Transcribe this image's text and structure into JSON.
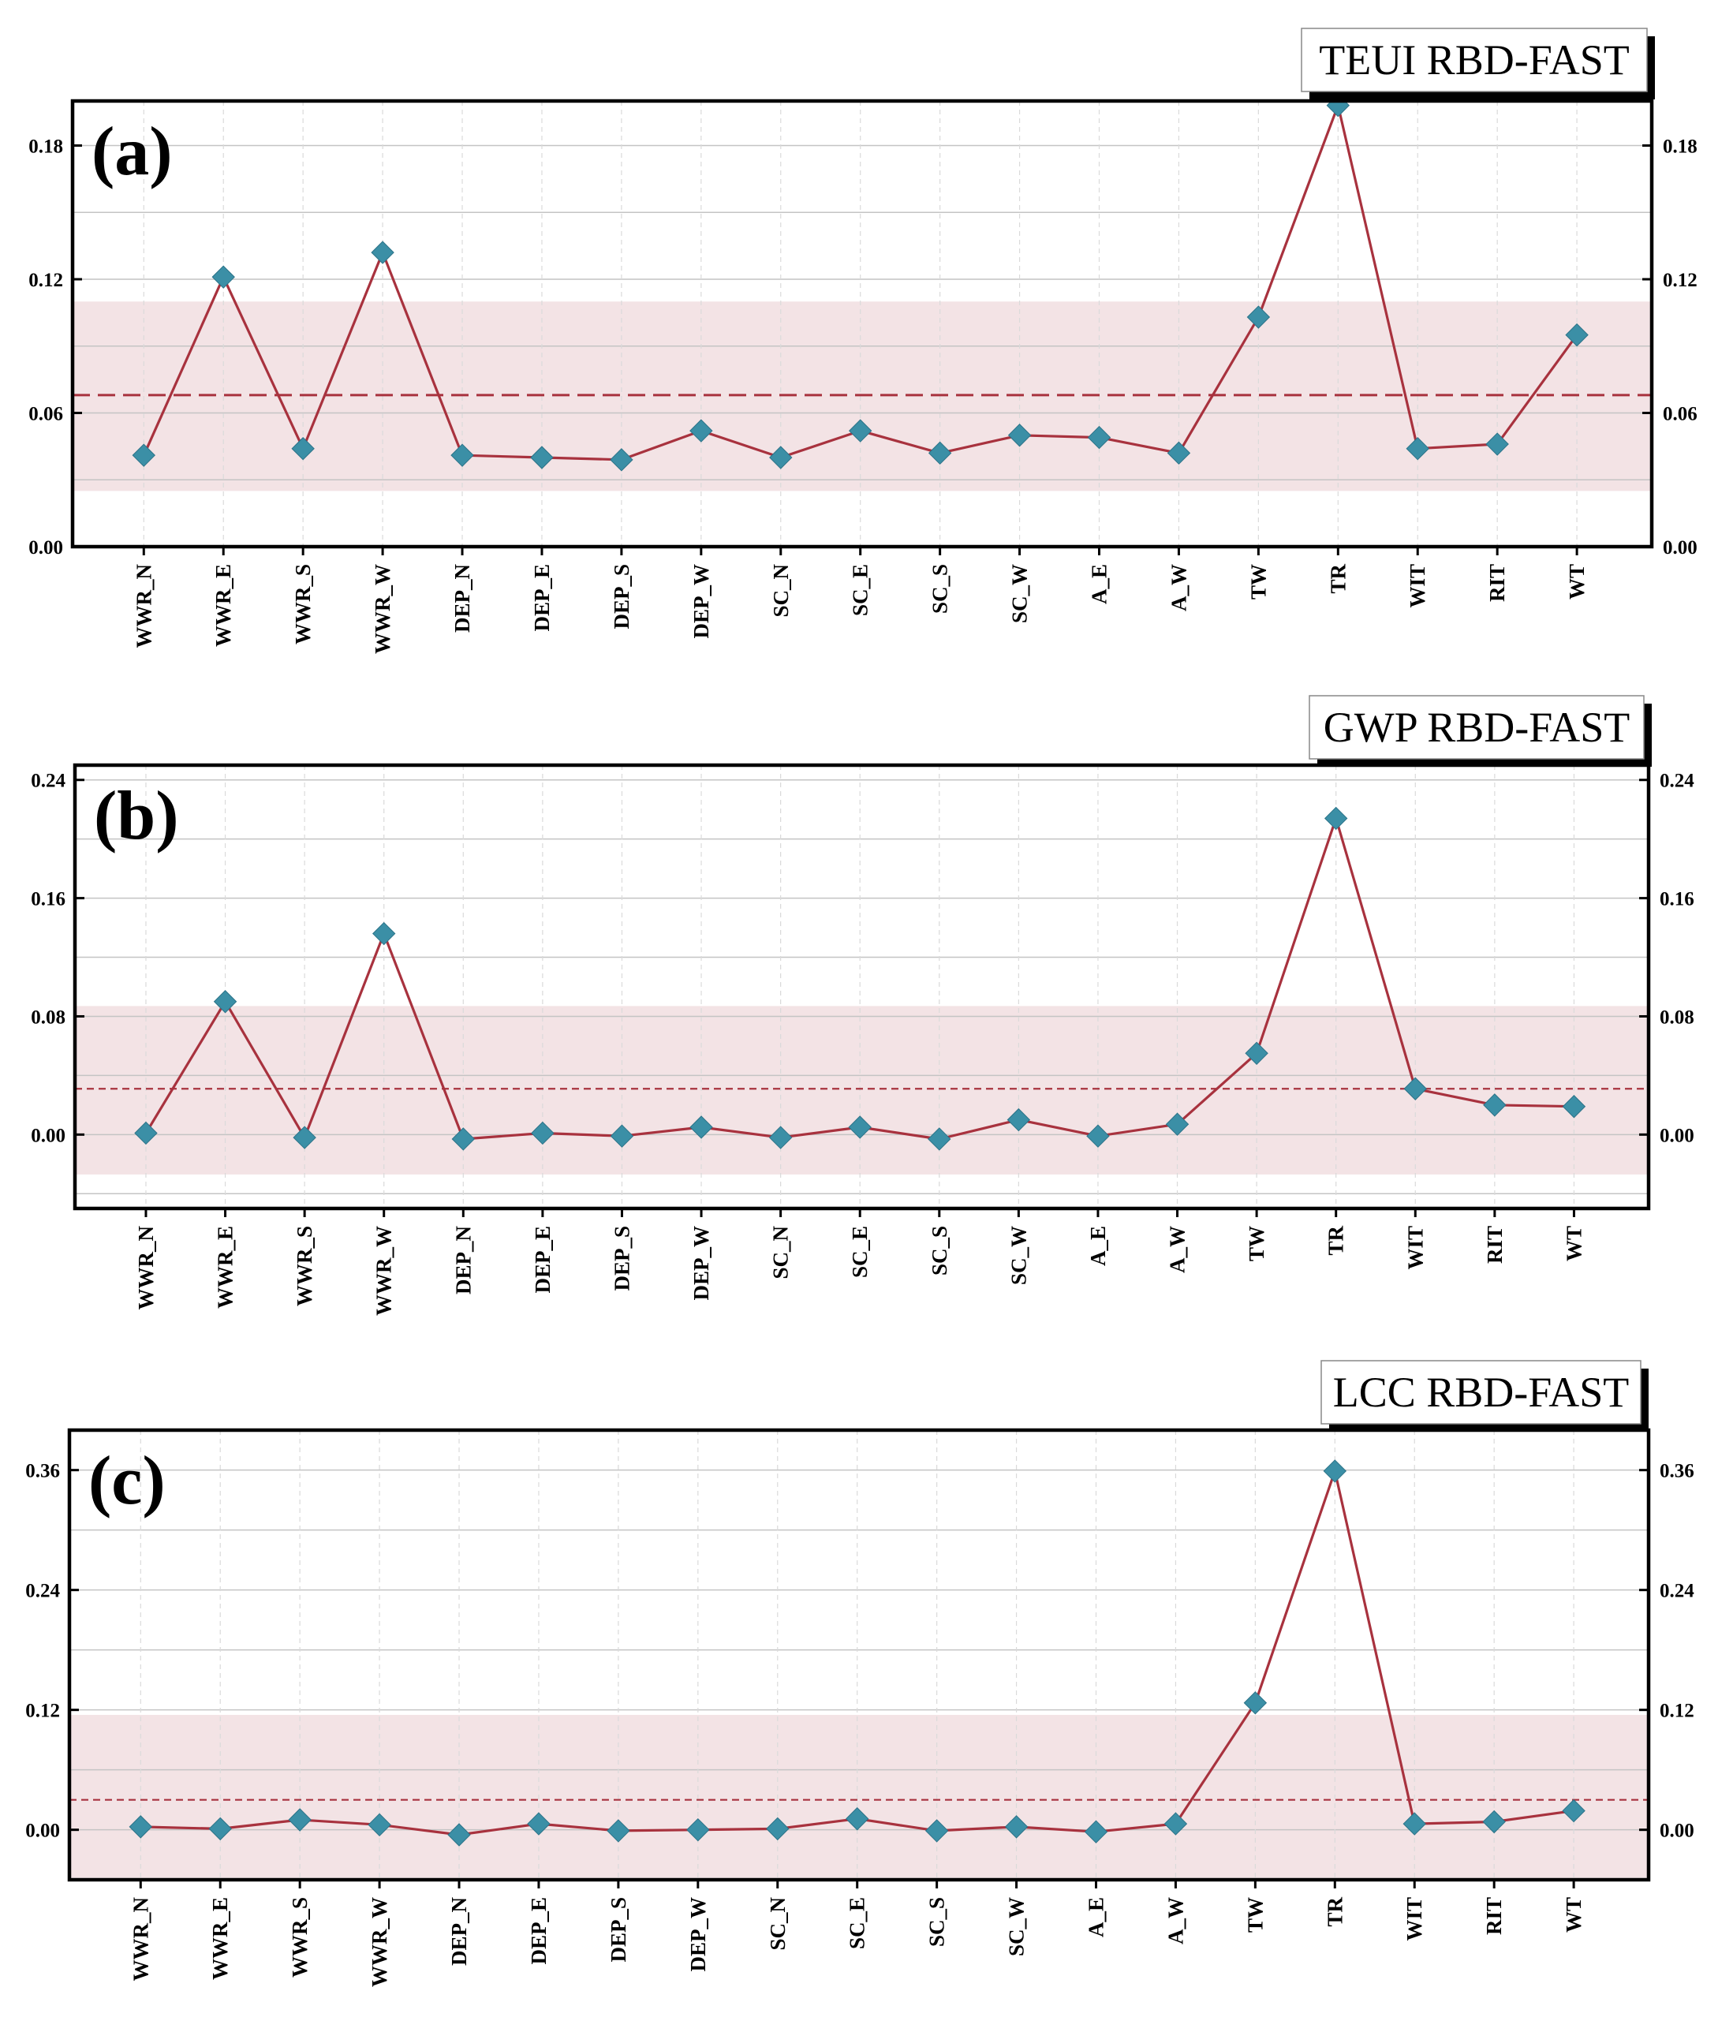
{
  "chart_data": [
    {
      "type": "line",
      "panel_label": "(a)",
      "title": "TEUI RBD-FAST",
      "xlabel": "",
      "ylabel": "",
      "categories": [
        "WWR_N",
        "WWR_E",
        "WWR_S",
        "WWR_W",
        "DEP_N",
        "DEP_E",
        "DEP_S",
        "DEP_W",
        "SC_N",
        "SC_E",
        "SC_S",
        "SC_W",
        "A_E",
        "A_W",
        "TW",
        "TR",
        "WIT",
        "RIT",
        "WT"
      ],
      "series": [
        {
          "name": "TEUI",
          "values": [
            0.041,
            0.121,
            0.044,
            0.132,
            0.041,
            0.04,
            0.039,
            0.052,
            0.04,
            0.052,
            0.042,
            0.05,
            0.049,
            0.042,
            0.103,
            0.198,
            0.044,
            0.046,
            0.095
          ]
        }
      ],
      "mean_line": 0.068,
      "band": [
        0.025,
        0.11
      ],
      "ylim": [
        0.0,
        0.2
      ],
      "yticks": [
        0.0,
        0.06,
        0.12,
        0.18
      ],
      "ytick_labels": [
        "0.00",
        "0.06",
        "0.12",
        "0.18"
      ],
      "legend_position": "top-right",
      "grid": true,
      "colors": {
        "line": "#a8323e",
        "marker": "#3b8fa6",
        "band": "#f3e3e5",
        "mean": "#a8323e"
      }
    },
    {
      "type": "line",
      "panel_label": "(b)",
      "title": "GWP RBD-FAST",
      "xlabel": "",
      "ylabel": "",
      "categories": [
        "WWR_N",
        "WWR_E",
        "WWR_S",
        "WWR_W",
        "DEP_N",
        "DEP_E",
        "DEP_S",
        "DEP_W",
        "SC_N",
        "SC_E",
        "SC_S",
        "SC_W",
        "A_E",
        "A_W",
        "TW",
        "TR",
        "WIT",
        "RIT",
        "WT"
      ],
      "series": [
        {
          "name": "GWP",
          "values": [
            0.001,
            0.09,
            -0.002,
            0.136,
            -0.003,
            0.001,
            -0.001,
            0.005,
            -0.002,
            0.005,
            -0.003,
            0.01,
            -0.001,
            0.007,
            0.055,
            0.214,
            0.031,
            0.02,
            0.019
          ]
        }
      ],
      "mean_line": 0.031,
      "band": [
        -0.027,
        0.087
      ],
      "ylim": [
        -0.05,
        0.25
      ],
      "yticks": [
        0.0,
        0.08,
        0.16,
        0.24
      ],
      "ytick_labels": [
        "0.00",
        "0.08",
        "0.16",
        "0.24"
      ],
      "legend_position": "top-right",
      "grid": true,
      "colors": {
        "line": "#a8323e",
        "marker": "#3b8fa6",
        "band": "#f3e3e5",
        "mean": "#a8323e"
      }
    },
    {
      "type": "line",
      "panel_label": "(c)",
      "title": "LCC RBD-FAST",
      "xlabel": "",
      "ylabel": "",
      "categories": [
        "WWR_N",
        "WWR_E",
        "WWR_S",
        "WWR_W",
        "DEP_N",
        "DEP_E",
        "DEP_S",
        "DEP_W",
        "SC_N",
        "SC_E",
        "SC_S",
        "SC_W",
        "A_E",
        "A_W",
        "TW",
        "TR",
        "WIT",
        "RIT",
        "WT"
      ],
      "series": [
        {
          "name": "LCC",
          "values": [
            0.003,
            0.001,
            0.01,
            0.005,
            -0.005,
            0.006,
            -0.001,
            0.0,
            0.001,
            0.011,
            -0.001,
            0.003,
            -0.002,
            0.006,
            0.127,
            0.359,
            0.006,
            0.008,
            0.019
          ]
        }
      ],
      "mean_line": 0.03,
      "band": [
        -0.048,
        0.115
      ],
      "ylim": [
        -0.05,
        0.4
      ],
      "yticks": [
        0.0,
        0.12,
        0.24,
        0.36
      ],
      "ytick_labels": [
        "0.00",
        "0.12",
        "0.24",
        "0.36"
      ],
      "legend_position": "top-right",
      "grid": true,
      "colors": {
        "line": "#a8323e",
        "marker": "#3b8fa6",
        "band": "#f3e3e5",
        "mean": "#a8323e"
      }
    }
  ]
}
